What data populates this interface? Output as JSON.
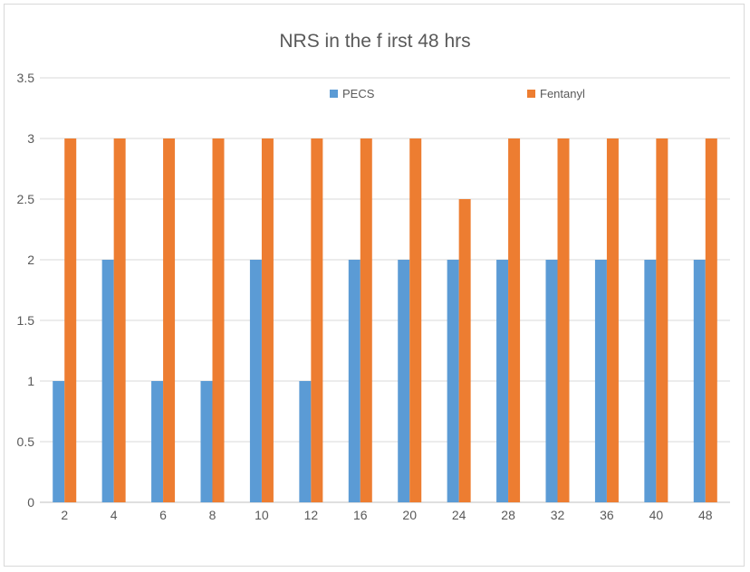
{
  "chart_data": {
    "type": "bar",
    "title": "NRS in the f irst 48 hrs",
    "xlabel": "",
    "ylabel": "",
    "categories": [
      "2",
      "4",
      "6",
      "8",
      "10",
      "12",
      "16",
      "20",
      "24",
      "28",
      "32",
      "36",
      "40",
      "48"
    ],
    "ylim": [
      0,
      3.5
    ],
    "yticks": [
      "0",
      "0.5",
      "1",
      "1.5",
      "2",
      "2.5",
      "3",
      "3.5"
    ],
    "grid": true,
    "legend_position": "top-right",
    "series": [
      {
        "name": "PECS",
        "color": "#5B9BD5",
        "values": [
          1,
          2,
          1,
          1,
          2,
          1,
          2,
          2,
          2,
          2,
          2,
          2,
          2,
          2
        ]
      },
      {
        "name": "Fentanyl",
        "color": "#ED7D31",
        "values": [
          3,
          3,
          3,
          3,
          3,
          3,
          3,
          3,
          2.5,
          3,
          3,
          3,
          3,
          3
        ]
      }
    ]
  }
}
